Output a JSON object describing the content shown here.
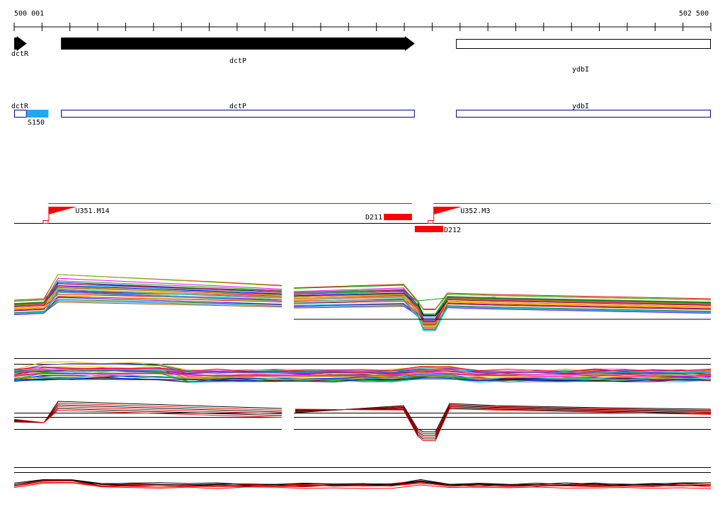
{
  "coordinates": {
    "start_label": "500 001",
    "end_label": "502 500",
    "start": 500001,
    "end": 502500
  },
  "genes_arrows": [
    {
      "name": "dctR",
      "strand": "+",
      "start": 500001,
      "end": 500046,
      "style": "filled"
    },
    {
      "name": "dctP",
      "strand": "+",
      "start": 500169,
      "end": 501438,
      "style": "filled"
    },
    {
      "name": "ydbI",
      "strand": "+",
      "start": 501586,
      "end": 502500,
      "style": "outline"
    }
  ],
  "gene_boxes": [
    {
      "name": "dctR",
      "start": 500001,
      "end": 500046
    },
    {
      "name": "dctP",
      "start": 500169,
      "end": 501438
    },
    {
      "name": "ydbI",
      "start": 501586,
      "end": 502500
    }
  ],
  "sRNA": {
    "name": "S150",
    "start": 500046,
    "end": 500124,
    "color": "#21a9f0"
  },
  "transcripts": [
    {
      "name": "U351.M14",
      "start": 500124,
      "end": 501428
    },
    {
      "name": "U352.M3",
      "start": 501505,
      "end": 502500
    }
  ],
  "features": [
    {
      "name": "D211",
      "start": 501327,
      "end": 501428,
      "side": "above"
    },
    {
      "name": "D212",
      "start": 501438,
      "end": 501540,
      "side": "below"
    }
  ],
  "colors": {
    "feature_red": "#ff0000",
    "gene_box_outline": "#00008b",
    "line_black": "#000000"
  }
}
